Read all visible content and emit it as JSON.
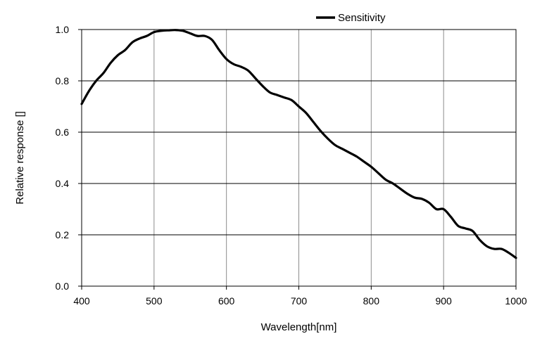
{
  "chart_data": {
    "type": "line",
    "title": "",
    "xlabel": "Wavelength[nm]",
    "ylabel": "Relative response []",
    "xlim": [
      400,
      1000
    ],
    "ylim": [
      0.0,
      1.0
    ],
    "grid": true,
    "legend_position": "top",
    "x_ticks": [
      "400",
      "500",
      "600",
      "700",
      "800",
      "900",
      "1000"
    ],
    "y_ticks": [
      "0.0",
      "0.2",
      "0.4",
      "0.6",
      "0.8",
      "1.0"
    ],
    "series": [
      {
        "name": "Sensitivity",
        "color": "#000000",
        "x": [
          400,
          410,
          420,
          430,
          440,
          450,
          460,
          470,
          480,
          490,
          500,
          510,
          520,
          530,
          540,
          550,
          560,
          570,
          580,
          590,
          600,
          610,
          620,
          630,
          640,
          650,
          660,
          670,
          680,
          690,
          700,
          710,
          720,
          730,
          740,
          750,
          760,
          770,
          780,
          790,
          800,
          810,
          820,
          830,
          840,
          850,
          860,
          870,
          880,
          890,
          900,
          910,
          920,
          930,
          940,
          950,
          960,
          970,
          980,
          990,
          1000
        ],
        "values": [
          0.71,
          0.76,
          0.8,
          0.83,
          0.87,
          0.9,
          0.92,
          0.95,
          0.965,
          0.975,
          0.99,
          0.995,
          0.997,
          0.998,
          0.995,
          0.985,
          0.975,
          0.975,
          0.96,
          0.92,
          0.885,
          0.865,
          0.855,
          0.84,
          0.81,
          0.78,
          0.755,
          0.745,
          0.735,
          0.725,
          0.7,
          0.675,
          0.64,
          0.605,
          0.575,
          0.55,
          0.535,
          0.52,
          0.505,
          0.485,
          0.465,
          0.44,
          0.415,
          0.4,
          0.38,
          0.36,
          0.345,
          0.34,
          0.325,
          0.3,
          0.3,
          0.27,
          0.235,
          0.225,
          0.215,
          0.18,
          0.155,
          0.145,
          0.145,
          0.13,
          0.11
        ]
      }
    ]
  }
}
